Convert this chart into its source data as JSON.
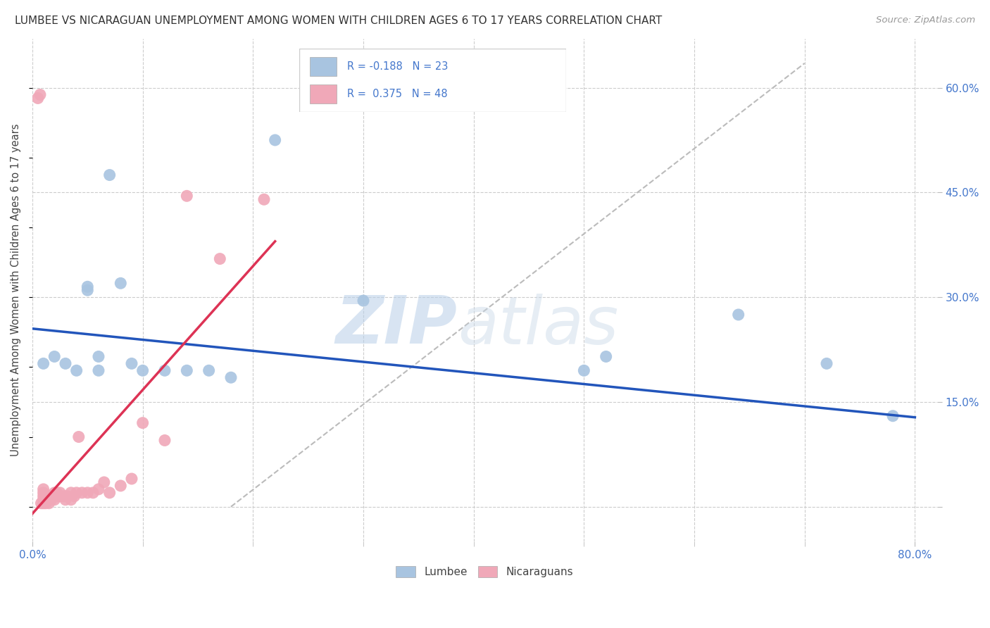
{
  "title": "LUMBEE VS NICARAGUAN UNEMPLOYMENT AMONG WOMEN WITH CHILDREN AGES 6 TO 17 YEARS CORRELATION CHART",
  "source": "Source: ZipAtlas.com",
  "ylabel": "Unemployment Among Women with Children Ages 6 to 17 years",
  "xlim": [
    0.0,
    0.82
  ],
  "ylim": [
    -0.05,
    0.67
  ],
  "yticks_right": [
    0.0,
    0.15,
    0.3,
    0.45,
    0.6
  ],
  "ytick_labels_right": [
    "",
    "15.0%",
    "30.0%",
    "45.0%",
    "60.0%"
  ],
  "lumbee_color": "#a8c4e0",
  "nicaraguan_color": "#f0a8b8",
  "lumbee_line_color": "#2255bb",
  "nicaraguan_line_color": "#dd3355",
  "watermark_zip": "ZIP",
  "watermark_atlas": "atlas",
  "lumbee_x": [
    0.01,
    0.02,
    0.04,
    0.05,
    0.05,
    0.06,
    0.07,
    0.08,
    0.09,
    0.1,
    0.12,
    0.14,
    0.22,
    0.3,
    0.5,
    0.52,
    0.64,
    0.72,
    0.78,
    0.03,
    0.06,
    0.16,
    0.18
  ],
  "lumbee_y": [
    0.205,
    0.215,
    0.195,
    0.31,
    0.315,
    0.215,
    0.475,
    0.32,
    0.205,
    0.195,
    0.195,
    0.195,
    0.525,
    0.295,
    0.195,
    0.215,
    0.275,
    0.205,
    0.13,
    0.205,
    0.195,
    0.195,
    0.185
  ],
  "nicaraguan_x": [
    0.005,
    0.007,
    0.008,
    0.01,
    0.01,
    0.01,
    0.01,
    0.01,
    0.012,
    0.012,
    0.013,
    0.014,
    0.015,
    0.015,
    0.015,
    0.016,
    0.017,
    0.018,
    0.018,
    0.02,
    0.02,
    0.02,
    0.022,
    0.022,
    0.025,
    0.025,
    0.028,
    0.03,
    0.03,
    0.032,
    0.035,
    0.035,
    0.038,
    0.04,
    0.042,
    0.045,
    0.05,
    0.055,
    0.06,
    0.065,
    0.07,
    0.08,
    0.09,
    0.1,
    0.12,
    0.14,
    0.17,
    0.21
  ],
  "nicaraguan_y": [
    0.585,
    0.59,
    0.005,
    0.005,
    0.01,
    0.015,
    0.02,
    0.025,
    0.005,
    0.01,
    0.01,
    0.01,
    0.005,
    0.01,
    0.015,
    0.01,
    0.01,
    0.012,
    0.015,
    0.01,
    0.015,
    0.02,
    0.015,
    0.02,
    0.015,
    0.02,
    0.015,
    0.01,
    0.015,
    0.015,
    0.01,
    0.02,
    0.015,
    0.02,
    0.1,
    0.02,
    0.02,
    0.02,
    0.025,
    0.035,
    0.02,
    0.03,
    0.04,
    0.12,
    0.095,
    0.445,
    0.355,
    0.44
  ],
  "ref_line_x": [
    0.18,
    0.7
  ],
  "ref_line_y": [
    0.0,
    0.635
  ],
  "blue_line_x": [
    0.0,
    0.8
  ],
  "blue_line_y": [
    0.255,
    0.128
  ],
  "pink_line_x": [
    0.0,
    0.22
  ],
  "pink_line_y": [
    -0.01,
    0.38
  ]
}
